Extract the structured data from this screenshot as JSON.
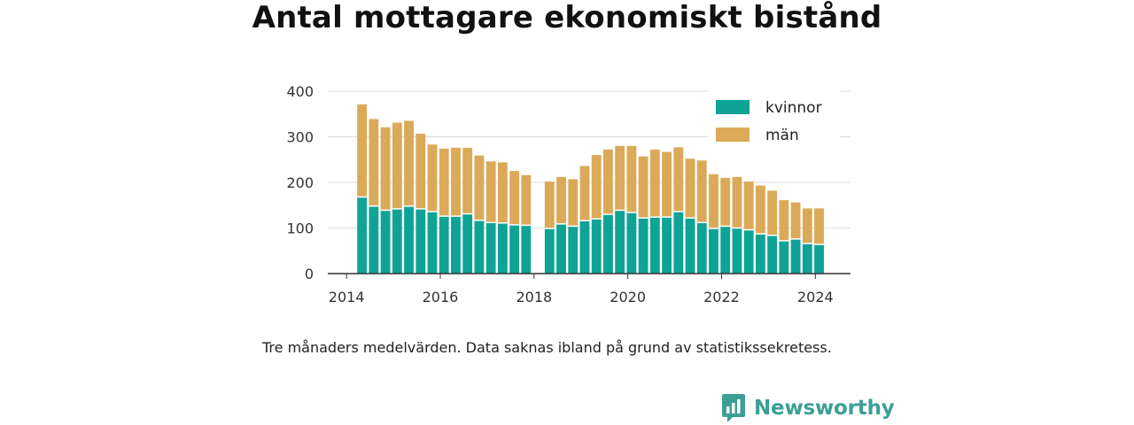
{
  "chart_data": {
    "type": "bar",
    "stacked": true,
    "title": "Antal mottagare ekonomiskt bistånd",
    "note": "Tre månaders medelvärden. Data saknas ibland på grund av statistikssekretess.",
    "xlabel": "",
    "ylabel": "",
    "ylim": [
      0,
      400
    ],
    "yticks": [
      "0",
      "100",
      "200",
      "300",
      "400"
    ],
    "xlim": [
      2013.6,
      2024.75
    ],
    "xticks": [
      "2014",
      "2016",
      "2018",
      "2020",
      "2022",
      "2024"
    ],
    "grid": true,
    "legend_position": "top-right",
    "x": [
      2014.33,
      2014.58,
      2014.83,
      2015.08,
      2015.33,
      2015.58,
      2015.83,
      2016.08,
      2016.33,
      2016.58,
      2016.83,
      2017.08,
      2017.33,
      2017.58,
      2017.83,
      2018.33,
      2018.58,
      2018.83,
      2019.08,
      2019.33,
      2019.58,
      2019.83,
      2020.08,
      2020.33,
      2020.58,
      2020.83,
      2021.08,
      2021.33,
      2021.58,
      2021.83,
      2022.08,
      2022.33,
      2022.58,
      2022.83,
      2023.08,
      2023.33,
      2023.58,
      2023.83,
      2024.08
    ],
    "series": [
      {
        "name": "kvinnor",
        "color": "#0fa396",
        "values": [
          168,
          148,
          139,
          142,
          148,
          142,
          136,
          126,
          126,
          131,
          117,
          112,
          111,
          107,
          106,
          99,
          109,
          104,
          116,
          120,
          130,
          139,
          134,
          122,
          124,
          124,
          136,
          122,
          112,
          99,
          104,
          100,
          96,
          87,
          84,
          72,
          76,
          66,
          64
        ]
      },
      {
        "name": "män",
        "color": "#dbaa58",
        "values": [
          203,
          191,
          182,
          189,
          187,
          165,
          147,
          148,
          150,
          145,
          142,
          134,
          133,
          118,
          110,
          103,
          103,
          103,
          120,
          140,
          142,
          141,
          146,
          135,
          148,
          143,
          141,
          130,
          136,
          119,
          106,
          112,
          106,
          106,
          98,
          89,
          80,
          77,
          79
        ]
      }
    ]
  },
  "brand": {
    "name": "Newsworthy",
    "color": "#3d9f95",
    "icon": "chat-bars-icon"
  }
}
